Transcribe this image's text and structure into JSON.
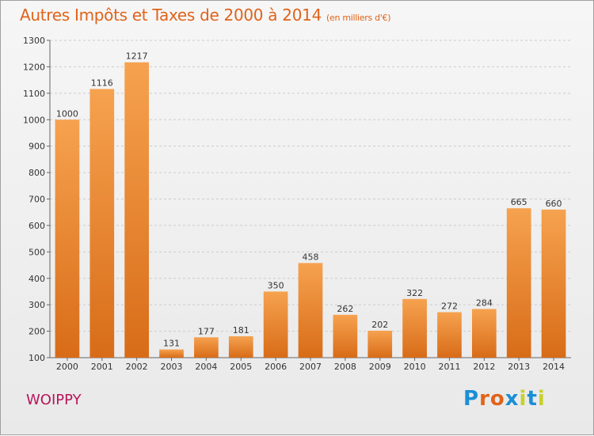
{
  "header": {
    "title": "Autres Impôts et Taxes de 2000 à 2014",
    "subtitle": "(en milliers d'€)"
  },
  "footer": {
    "town": "WOIPPY",
    "logo_letters": [
      "P",
      "r",
      "o",
      "x",
      "i",
      "t",
      "i"
    ]
  },
  "colors": {
    "bar_light": "#f6a24f",
    "bar_dark": "#d86c18",
    "title": "#e0631a",
    "town": "#b8155a",
    "grid": "#cccccc",
    "logo": [
      "#1a8fd6",
      "#e0631a",
      "#e0631a",
      "#1a8fd6",
      "#c6d12a",
      "#1a8fd6",
      "#c6d12a"
    ]
  },
  "chart_data": {
    "type": "bar",
    "categories": [
      "2000",
      "2001",
      "2002",
      "2003",
      "2004",
      "2005",
      "2006",
      "2007",
      "2008",
      "2009",
      "2010",
      "2011",
      "2012",
      "2013",
      "2014"
    ],
    "values": [
      1000,
      1116,
      1217,
      131,
      177,
      181,
      350,
      458,
      262,
      202,
      322,
      272,
      284,
      665,
      660
    ],
    "ylim": [
      100,
      1300
    ],
    "yticks": [
      100,
      200,
      300,
      400,
      500,
      600,
      700,
      800,
      900,
      1000,
      1100,
      1200,
      1300
    ],
    "grid": true,
    "title": "Autres Impôts et Taxes de 2000 à 2014",
    "xlabel": "",
    "ylabel": ""
  }
}
